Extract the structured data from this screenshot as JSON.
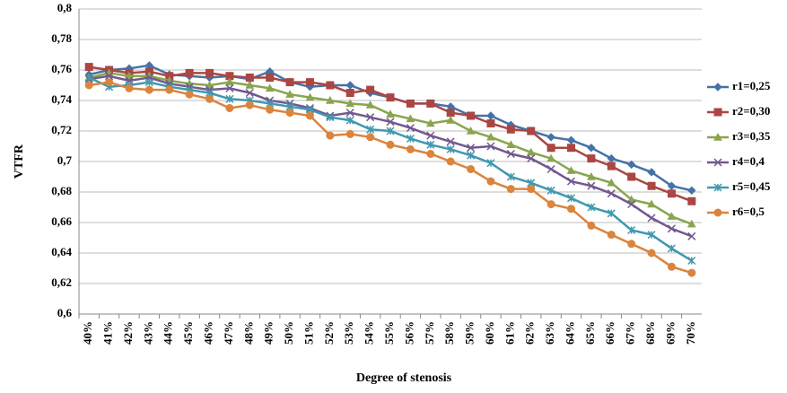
{
  "chart_data": {
    "type": "line",
    "x_label": "Degree of stenosis",
    "y_label": "VTFR",
    "categories": [
      "40%",
      "41%",
      "42%",
      "43%",
      "44%",
      "45%",
      "46%",
      "47%",
      "48%",
      "49%",
      "50%",
      "51%",
      "52%",
      "53%",
      "54%",
      "55%",
      "56%",
      "57%",
      "58%",
      "59%",
      "60%",
      "61%",
      "62%",
      "63%",
      "64%",
      "65%",
      "66%",
      "67%",
      "68%",
      "69%",
      "70%"
    ],
    "ylim": [
      0.6,
      0.8
    ],
    "yticks": [
      {
        "value": 0.6,
        "label": "0,6"
      },
      {
        "value": 0.62,
        "label": "0,62"
      },
      {
        "value": 0.64,
        "label": "0,64"
      },
      {
        "value": 0.66,
        "label": "0,66"
      },
      {
        "value": 0.68,
        "label": "0,68"
      },
      {
        "value": 0.7,
        "label": "0,7"
      },
      {
        "value": 0.72,
        "label": "0,72"
      },
      {
        "value": 0.74,
        "label": "0,74"
      },
      {
        "value": 0.76,
        "label": "0,76"
      },
      {
        "value": 0.78,
        "label": "0,78"
      },
      {
        "value": 0.8,
        "label": "0,8"
      }
    ],
    "grid": true,
    "legend": "right",
    "series": [
      {
        "name": "r1=0,25",
        "color": "#4572a7",
        "marker": "diamond",
        "values": [
          0.757,
          0.76,
          0.761,
          0.763,
          0.757,
          0.756,
          0.755,
          0.756,
          0.754,
          0.759,
          0.752,
          0.749,
          0.75,
          0.75,
          0.745,
          0.742,
          0.738,
          0.738,
          0.736,
          0.73,
          0.73,
          0.724,
          0.72,
          0.716,
          0.714,
          0.709,
          0.702,
          0.698,
          0.693,
          0.684,
          0.681
        ]
      },
      {
        "name": "r2=0,30",
        "color": "#aa4643",
        "marker": "square",
        "values": [
          0.762,
          0.76,
          0.758,
          0.759,
          0.756,
          0.758,
          0.758,
          0.756,
          0.755,
          0.755,
          0.752,
          0.752,
          0.75,
          0.745,
          0.747,
          0.742,
          0.738,
          0.738,
          0.732,
          0.73,
          0.725,
          0.721,
          0.72,
          0.709,
          0.709,
          0.702,
          0.697,
          0.69,
          0.684,
          0.679,
          0.674
        ]
      },
      {
        "name": "r3=0,35",
        "color": "#89a54e",
        "marker": "triangle",
        "values": [
          0.755,
          0.758,
          0.756,
          0.756,
          0.753,
          0.751,
          0.75,
          0.752,
          0.75,
          0.748,
          0.744,
          0.742,
          0.74,
          0.738,
          0.737,
          0.731,
          0.728,
          0.725,
          0.727,
          0.72,
          0.716,
          0.711,
          0.706,
          0.702,
          0.694,
          0.69,
          0.686,
          0.675,
          0.672,
          0.664,
          0.659
        ]
      },
      {
        "name": "r4=0,4",
        "color": "#71588f",
        "marker": "x",
        "values": [
          0.754,
          0.756,
          0.753,
          0.755,
          0.751,
          0.749,
          0.747,
          0.748,
          0.745,
          0.74,
          0.738,
          0.735,
          0.73,
          0.732,
          0.729,
          0.726,
          0.722,
          0.717,
          0.713,
          0.709,
          0.71,
          0.705,
          0.702,
          0.695,
          0.687,
          0.684,
          0.679,
          0.672,
          0.663,
          0.656,
          0.651
        ]
      },
      {
        "name": "r5=0,45",
        "color": "#4198af",
        "marker": "star",
        "values": [
          0.755,
          0.749,
          0.75,
          0.752,
          0.749,
          0.747,
          0.745,
          0.741,
          0.74,
          0.738,
          0.736,
          0.734,
          0.729,
          0.727,
          0.721,
          0.72,
          0.715,
          0.711,
          0.708,
          0.704,
          0.699,
          0.69,
          0.686,
          0.681,
          0.676,
          0.67,
          0.666,
          0.655,
          0.652,
          0.643,
          0.635
        ]
      },
      {
        "name": "r6=0,5",
        "color": "#db843d",
        "marker": "circle",
        "values": [
          0.75,
          0.752,
          0.748,
          0.747,
          0.747,
          0.744,
          0.741,
          0.735,
          0.737,
          0.734,
          0.732,
          0.73,
          0.717,
          0.718,
          0.716,
          0.711,
          0.708,
          0.705,
          0.7,
          0.695,
          0.687,
          0.682,
          0.682,
          0.672,
          0.669,
          0.658,
          0.652,
          0.646,
          0.64,
          0.631,
          0.627
        ]
      }
    ]
  }
}
